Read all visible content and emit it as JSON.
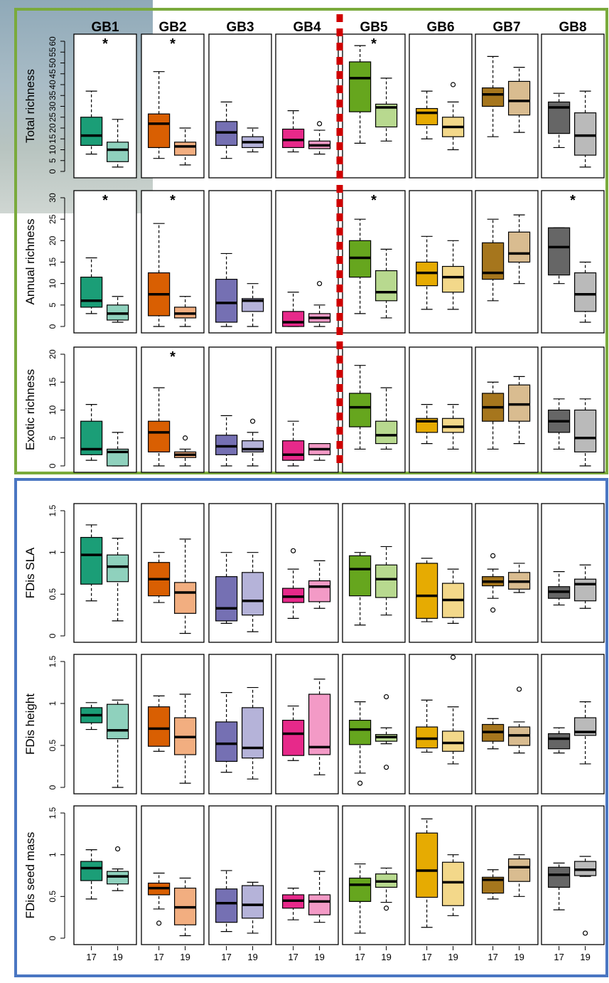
{
  "chart_data": {
    "type": "boxplot",
    "sites": [
      "GB1",
      "GB2",
      "GB3",
      "GB4",
      "GB5",
      "GB6",
      "GB7",
      "GB8"
    ],
    "years": [
      "17",
      "19"
    ],
    "site_colors": [
      [
        "#1b9e77",
        "#8fd1bd"
      ],
      [
        "#d95f02",
        "#f2ae80"
      ],
      [
        "#7570b3",
        "#b5b3d9"
      ],
      [
        "#e7298a",
        "#f39ac6"
      ],
      [
        "#66a61e",
        "#b8d98f"
      ],
      [
        "#e6ab02",
        "#f3d88a"
      ],
      [
        "#a6761d",
        "#d9bc90"
      ],
      [
        "#666666",
        "#bababa"
      ]
    ],
    "group_frames": {
      "richness": "#7aaa3c",
      "functional": "#4a76c2",
      "divider": "#d00000"
    },
    "panels": [
      {
        "ylabel": "Total richness",
        "ylim": [
          0,
          60
        ],
        "ticks": [
          0,
          5,
          10,
          15,
          20,
          25,
          30,
          35,
          40,
          45,
          50,
          55,
          60
        ],
        "significant": [
          0,
          1,
          4
        ],
        "boxes": [
          [
            [
              8,
              12,
              16.5,
              25,
              37
            ],
            [
              2,
              4.5,
              10,
              13.5,
              24
            ]
          ],
          [
            [
              6,
              11,
              22,
              26.5,
              46
            ],
            [
              3,
              7.5,
              11.5,
              13.5,
              20
            ]
          ],
          [
            [
              6,
              12,
              18,
              23,
              32
            ],
            [
              9,
              11,
              13.5,
              16,
              20
            ]
          ],
          [
            [
              9,
              11,
              14.5,
              19.5,
              28
            ],
            [
              8,
              10.5,
              12,
              14,
              19
            ]
          ],
          [
            [
              13,
              27.5,
              43,
              50.5,
              58
            ],
            [
              14,
              20.5,
              29.5,
              31,
              43
            ]
          ],
          [
            [
              15,
              21.5,
              27,
              29,
              37
            ],
            [
              10,
              16,
              20.5,
              25,
              32
            ]
          ],
          [
            [
              16,
              30,
              35.5,
              38.5,
              53
            ],
            [
              18,
              26,
              32.5,
              41.5,
              48
            ]
          ],
          [
            [
              11,
              17.5,
              29.5,
              32,
              36
            ],
            [
              2,
              7.5,
              16.5,
              27,
              37
            ]
          ]
        ],
        "outliers": [
          [
            [],
            []
          ],
          [
            [],
            []
          ],
          [
            [],
            []
          ],
          [
            [],
            [
              22
            ]
          ],
          [
            [],
            []
          ],
          [
            [],
            [
              40
            ]
          ],
          [
            [],
            []
          ],
          [
            [],
            []
          ]
        ]
      },
      {
        "ylabel": "Annual richness",
        "ylim": [
          0,
          30
        ],
        "ticks": [
          0,
          5,
          10,
          15,
          20,
          25,
          30
        ],
        "significant": [
          0,
          1,
          4,
          7
        ],
        "boxes": [
          [
            [
              3,
              4.5,
              6,
              11.5,
              16
            ],
            [
              1,
              1.5,
              3,
              5,
              7
            ]
          ],
          [
            [
              0,
              2.5,
              7.5,
              12.5,
              24
            ],
            [
              0,
              2,
              3,
              4.5,
              7
            ]
          ],
          [
            [
              0,
              1,
              5.5,
              11,
              17
            ],
            [
              0,
              3.5,
              6,
              6.5,
              10
            ]
          ],
          [
            [
              0,
              0,
              1,
              3.5,
              8
            ],
            [
              0,
              1,
              2,
              3,
              5
            ]
          ],
          [
            [
              3,
              11.5,
              16,
              20,
              25
            ],
            [
              2,
              6,
              8,
              13,
              18
            ]
          ],
          [
            [
              4,
              9.5,
              12.5,
              15,
              21
            ],
            [
              4,
              8,
              11.5,
              14,
              20
            ]
          ],
          [
            [
              6,
              11,
              12.5,
              19.5,
              25
            ],
            [
              10,
              15,
              17,
              22,
              26
            ]
          ],
          [
            [
              10,
              12,
              18.5,
              23,
              23
            ],
            [
              1,
              3.5,
              7.5,
              12.5,
              15
            ]
          ]
        ],
        "outliers": [
          [
            [],
            []
          ],
          [
            [],
            []
          ],
          [
            [],
            []
          ],
          [
            [],
            [
              10
            ]
          ],
          [
            [],
            []
          ],
          [
            [],
            []
          ],
          [
            [],
            []
          ],
          [
            [],
            []
          ]
        ]
      },
      {
        "ylabel": "Exotic richness",
        "ylim": [
          0,
          20
        ],
        "ticks": [
          0,
          5,
          10,
          15,
          20
        ],
        "significant": [
          1
        ],
        "boxes": [
          [
            [
              1,
              2,
              3,
              8,
              11
            ],
            [
              0,
              0,
              2.5,
              3,
              6
            ]
          ],
          [
            [
              0,
              2.5,
              6,
              8,
              14
            ],
            [
              0,
              1.5,
              2,
              2.5,
              3
            ]
          ],
          [
            [
              0,
              2,
              3.5,
              5.5,
              9
            ],
            [
              0,
              2.5,
              3,
              4.5,
              6
            ]
          ],
          [
            [
              0,
              1,
              2,
              4.5,
              8
            ],
            [
              1,
              2,
              3,
              4,
              4
            ]
          ],
          [
            [
              3,
              7,
              10.5,
              13,
              18
            ],
            [
              3,
              4,
              5.5,
              8,
              14
            ]
          ],
          [
            [
              4,
              6,
              8,
              8.5,
              11
            ],
            [
              3,
              6,
              7,
              8.5,
              11
            ]
          ],
          [
            [
              3,
              8,
              10.5,
              13,
              15
            ],
            [
              4,
              8,
              11,
              14.5,
              16
            ]
          ],
          [
            [
              3,
              6,
              8,
              10,
              12
            ],
            [
              0,
              2.5,
              5,
              10,
              12
            ]
          ]
        ],
        "outliers": [
          [
            [],
            []
          ],
          [
            [],
            [
              5
            ]
          ],
          [
            [],
            [
              8
            ]
          ],
          [
            [],
            []
          ],
          [
            [],
            []
          ],
          [
            [],
            []
          ],
          [
            [],
            []
          ],
          [
            [],
            []
          ]
        ]
      },
      {
        "ylabel": "FDis SLA",
        "ylim": [
          0,
          1.5
        ],
        "ticks": [
          0,
          0.5,
          1,
          1.5
        ],
        "significant": [],
        "boxes": [
          [
            [
              0.42,
              0.62,
              0.97,
              1.18,
              1.33
            ],
            [
              0.18,
              0.65,
              0.83,
              0.97,
              1.17
            ]
          ],
          [
            [
              0.4,
              0.48,
              0.68,
              0.88,
              1
            ],
            [
              0.03,
              0.27,
              0.52,
              0.64,
              1.16
            ]
          ],
          [
            [
              0.15,
              0.18,
              0.33,
              0.71,
              1
            ],
            [
              0.05,
              0.25,
              0.42,
              0.76,
              1
            ]
          ],
          [
            [
              0.21,
              0.4,
              0.47,
              0.57,
              0.8
            ],
            [
              0.33,
              0.41,
              0.59,
              0.66,
              0.9
            ]
          ],
          [
            [
              0.13,
              0.48,
              0.8,
              0.96,
              1
            ],
            [
              0.25,
              0.46,
              0.68,
              0.85,
              1.07
            ]
          ],
          [
            [
              0.17,
              0.21,
              0.48,
              0.87,
              0.93
            ],
            [
              0.15,
              0.22,
              0.43,
              0.63,
              0.8
            ]
          ],
          [
            [
              0.45,
              0.6,
              0.65,
              0.71,
              0.8
            ],
            [
              0.52,
              0.56,
              0.65,
              0.76,
              0.87
            ]
          ],
          [
            [
              0.37,
              0.45,
              0.53,
              0.59,
              0.77
            ],
            [
              0.33,
              0.42,
              0.62,
              0.68,
              0.85
            ]
          ]
        ],
        "outliers": [
          [
            [],
            []
          ],
          [
            [],
            []
          ],
          [
            [],
            []
          ],
          [
            [
              1.02
            ],
            []
          ],
          [
            [],
            []
          ],
          [
            [],
            []
          ],
          [
            [
              0.31,
              0.96
            ],
            []
          ],
          [
            [],
            []
          ]
        ]
      },
      {
        "ylabel": "FDis height",
        "ylim": [
          0,
          1.5
        ],
        "ticks": [
          0,
          0.5,
          1,
          1.5
        ],
        "significant": [],
        "boxes": [
          [
            [
              0.69,
              0.77,
              0.86,
              0.95,
              1.01
            ],
            [
              0,
              0.58,
              0.68,
              0.99,
              1.04
            ]
          ],
          [
            [
              0.43,
              0.49,
              0.7,
              0.96,
              1.09
            ],
            [
              0.05,
              0.39,
              0.6,
              0.83,
              1.11
            ]
          ],
          [
            [
              0.18,
              0.31,
              0.52,
              0.78,
              1.13
            ],
            [
              0.1,
              0.35,
              0.47,
              0.95,
              1.19
            ]
          ],
          [
            [
              0.32,
              0.38,
              0.64,
              0.8,
              0.97
            ],
            [
              0.15,
              0.39,
              0.48,
              1.11,
              1.29
            ]
          ],
          [
            [
              0.17,
              0.51,
              0.69,
              0.8,
              1.02
            ],
            [
              0.52,
              0.55,
              0.6,
              0.63,
              0.71
            ]
          ],
          [
            [
              0.42,
              0.47,
              0.58,
              0.72,
              1.04
            ],
            [
              0.28,
              0.43,
              0.53,
              0.67,
              0.96
            ]
          ],
          [
            [
              0.46,
              0.55,
              0.66,
              0.75,
              0.82
            ],
            [
              0.41,
              0.5,
              0.62,
              0.72,
              0.78
            ]
          ],
          [
            [
              0.41,
              0.46,
              0.58,
              0.64,
              0.71
            ],
            [
              0.28,
              0.62,
              0.66,
              0.83,
              1.02
            ]
          ]
        ],
        "outliers": [
          [
            [],
            []
          ],
          [
            [],
            []
          ],
          [
            [],
            []
          ],
          [
            [],
            []
          ],
          [
            [
              0.05
            ],
            [
              0.24,
              1.08
            ]
          ],
          [
            [],
            [
              1.55
            ]
          ],
          [
            [],
            [
              1.17
            ]
          ],
          [
            [],
            []
          ]
        ]
      },
      {
        "ylabel": "FDis seed mass",
        "ylim": [
          0,
          1.5
        ],
        "ticks": [
          0,
          0.5,
          1,
          1.5
        ],
        "significant": [],
        "boxes": [
          [
            [
              0.47,
              0.69,
              0.84,
              0.92,
              1.06
            ],
            [
              0.57,
              0.65,
              0.74,
              0.8,
              0.83
            ]
          ],
          [
            [
              0.35,
              0.52,
              0.6,
              0.66,
              0.78
            ],
            [
              0.03,
              0.16,
              0.37,
              0.6,
              0.72
            ]
          ],
          [
            [
              0.08,
              0.19,
              0.42,
              0.59,
              0.81
            ],
            [
              0.06,
              0.24,
              0.4,
              0.63,
              0.67
            ]
          ],
          [
            [
              0.22,
              0.36,
              0.45,
              0.52,
              0.6
            ],
            [
              0.19,
              0.28,
              0.44,
              0.52,
              0.8
            ]
          ],
          [
            [
              0.06,
              0.44,
              0.64,
              0.72,
              0.89
            ],
            [
              0.43,
              0.61,
              0.68,
              0.77,
              0.84
            ]
          ],
          [
            [
              0.13,
              0.49,
              0.81,
              1.26,
              1.43
            ],
            [
              0.27,
              0.39,
              0.67,
              0.91,
              1
            ]
          ],
          [
            [
              0.47,
              0.54,
              0.7,
              0.73,
              0.82
            ],
            [
              0.5,
              0.68,
              0.85,
              0.95,
              1
            ]
          ],
          [
            [
              0.34,
              0.61,
              0.76,
              0.85,
              0.9
            ],
            [
              0.74,
              0.75,
              0.82,
              0.92,
              0.98
            ]
          ]
        ],
        "outliers": [
          [
            [],
            [
              1.07
            ]
          ],
          [
            [
              0.18
            ],
            []
          ],
          [
            [],
            []
          ],
          [
            [],
            []
          ],
          [
            [],
            [
              0.36
            ]
          ],
          [
            [],
            []
          ],
          [
            [],
            []
          ],
          [
            [],
            [
              0.06
            ]
          ]
        ]
      }
    ]
  }
}
